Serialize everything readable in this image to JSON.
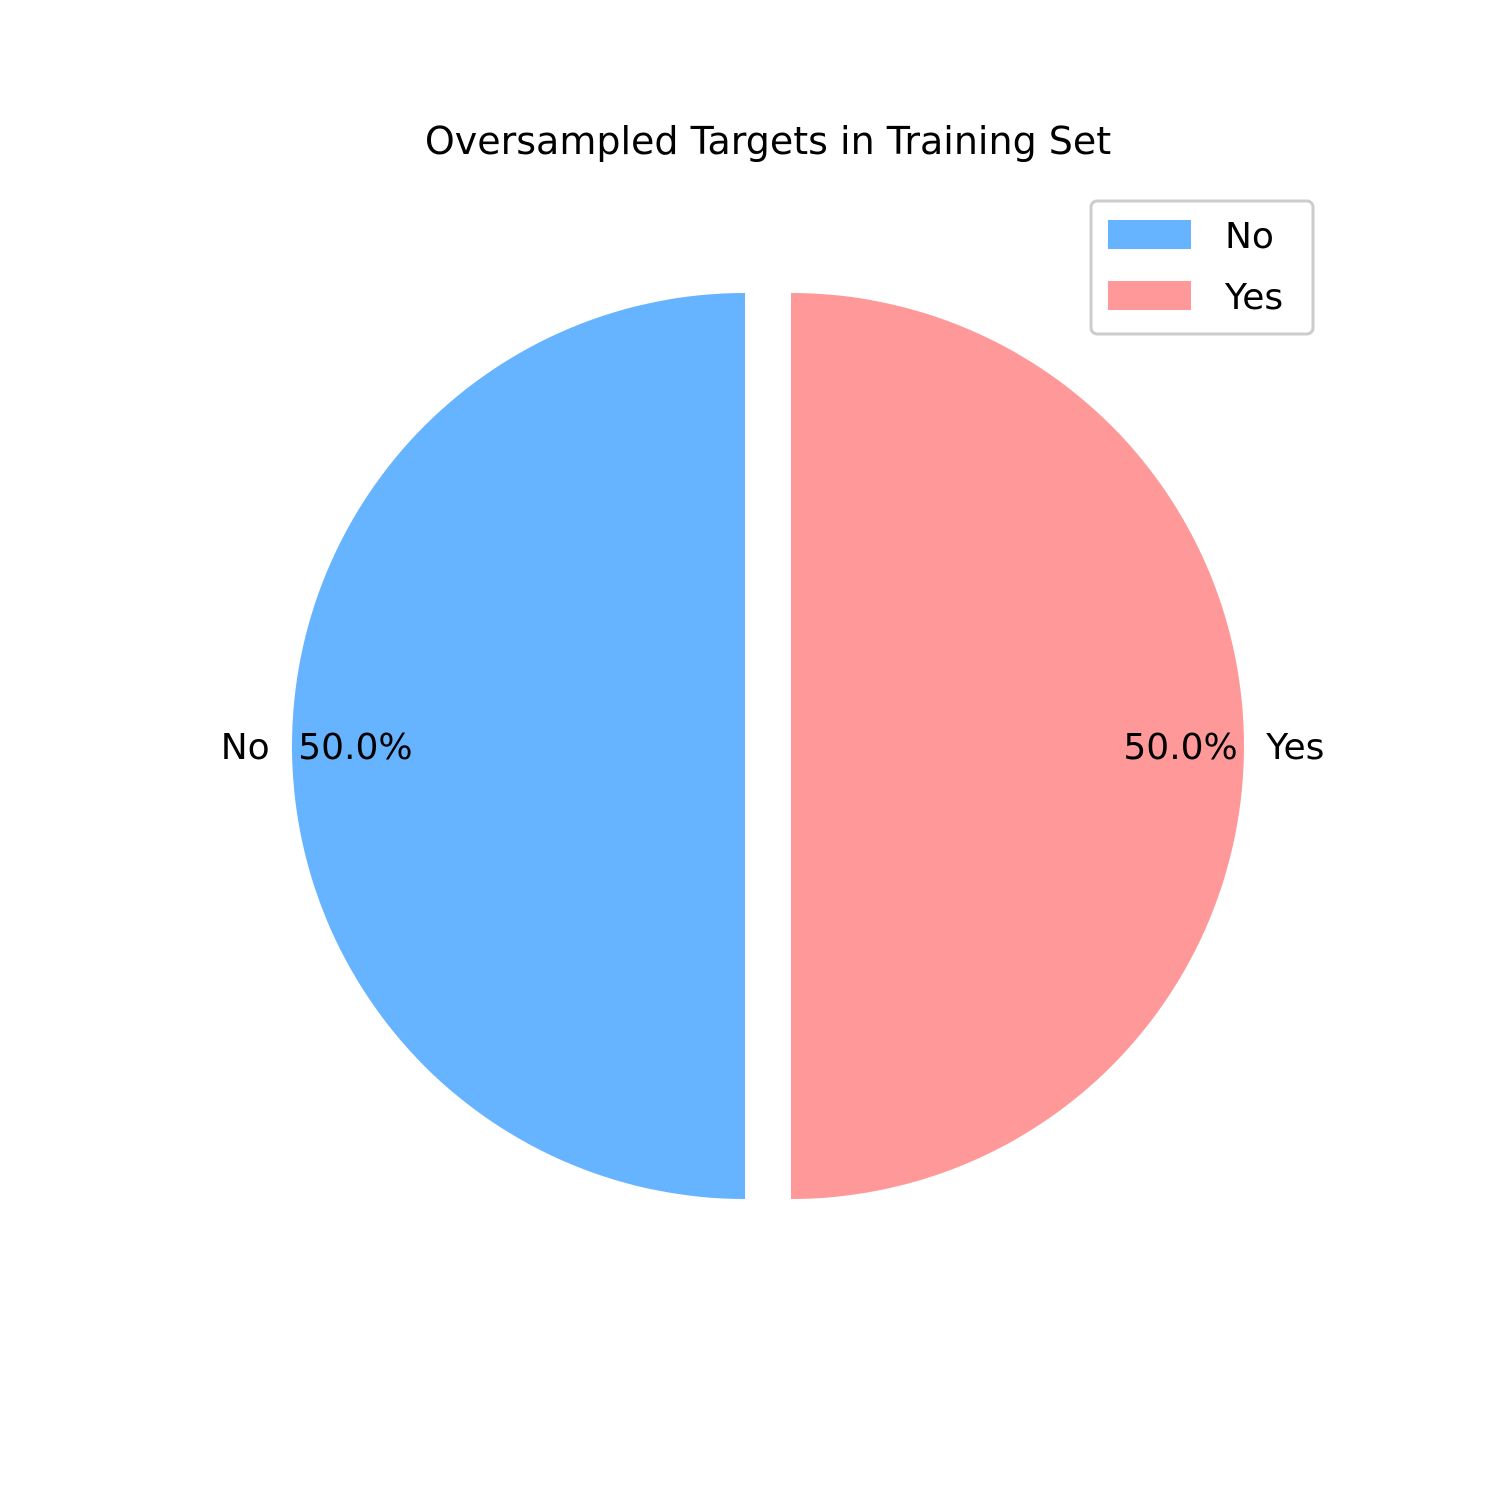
{
  "chart_data": {
    "type": "pie",
    "title": "Oversampled Targets in Training Set",
    "slices": [
      {
        "label": "No",
        "value": 50.0,
        "pct_label": "50.0%",
        "color": "#66b3ff"
      },
      {
        "label": "Yes",
        "value": 50.0,
        "pct_label": "50.0%",
        "color": "#ff9999"
      }
    ],
    "legend": {
      "placement": "top-right",
      "entries": [
        "No",
        "Yes"
      ]
    },
    "exploded": true,
    "start_angle": "90° (top), counterclockwise"
  }
}
